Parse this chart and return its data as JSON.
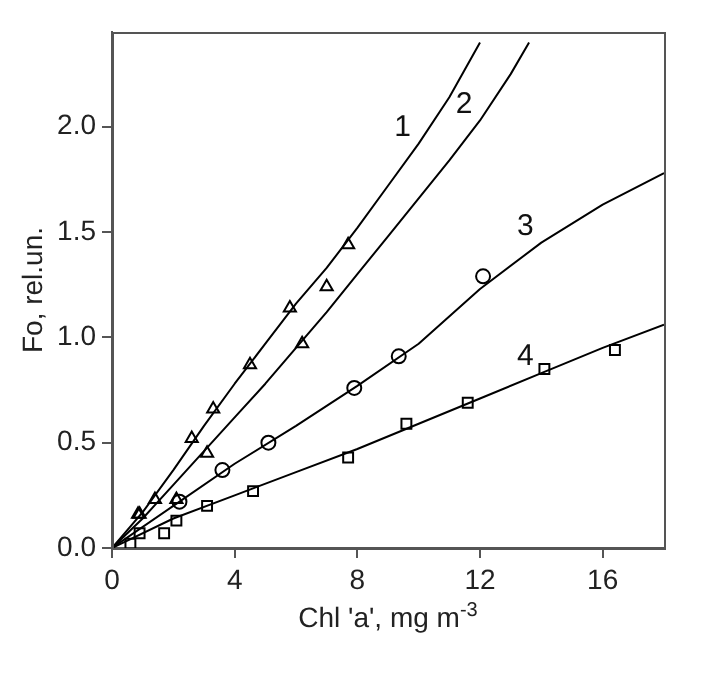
{
  "chart_data": {
    "type": "line",
    "xlabel": "Chl 'a', mg m$^{-3}$",
    "ylabel": "Fo, rel.un.",
    "xlim": [
      0,
      18
    ],
    "ylim": [
      0,
      2.45
    ],
    "xticks": [
      0,
      4,
      8,
      12,
      16
    ],
    "yticks": [
      {
        "value": 0,
        "label": "0.0"
      },
      {
        "value": 0.5,
        "label": "0.5"
      },
      {
        "value": 1,
        "label": "1.0"
      },
      {
        "value": 1.5,
        "label": "1.5"
      },
      {
        "value": 2,
        "label": "2.0"
      }
    ],
    "grid": false,
    "legend": false,
    "line_style": "solid",
    "series": [
      {
        "name": "1",
        "marker": "none",
        "color": "#000000",
        "x": [
          0,
          1,
          2,
          3,
          4,
          5,
          6,
          7,
          8,
          9,
          10,
          11,
          12
        ],
        "values": [
          0,
          0.17,
          0.37,
          0.58,
          0.78,
          0.97,
          1.16,
          1.33,
          1.52,
          1.72,
          1.92,
          2.14,
          2.4
        ]
      },
      {
        "name": "2",
        "marker": "none",
        "color": "#000000",
        "x": [
          0,
          1,
          2,
          3,
          4,
          5,
          6,
          7,
          8,
          9,
          10,
          11,
          12,
          13,
          13.6
        ],
        "values": [
          0,
          0.14,
          0.3,
          0.46,
          0.62,
          0.78,
          0.95,
          1.12,
          1.3,
          1.48,
          1.66,
          1.84,
          2.03,
          2.25,
          2.4
        ]
      },
      {
        "name": "3",
        "marker": "none",
        "color": "#000000",
        "x": [
          0,
          2,
          4,
          6,
          8,
          10,
          12,
          14,
          16,
          18
        ],
        "values": [
          0,
          0.2,
          0.4,
          0.58,
          0.77,
          0.97,
          1.23,
          1.45,
          1.63,
          1.78
        ]
      },
      {
        "name": "4",
        "marker": "none",
        "color": "#000000",
        "x": [
          0,
          2,
          4,
          6,
          8,
          10,
          12,
          14,
          16,
          18
        ],
        "values": [
          0,
          0.14,
          0.25,
          0.36,
          0.47,
          0.59,
          0.71,
          0.83,
          0.95,
          1.06
        ]
      },
      {
        "type": "scatter",
        "marker": "triangle",
        "color": "#000000",
        "x": [
          0.9,
          1.4,
          2.6,
          3.3,
          4.5,
          5.8,
          7.7
        ],
        "values": [
          0.16,
          0.23,
          0.52,
          0.66,
          0.87,
          1.14,
          1.44
        ]
      },
      {
        "type": "scatter",
        "marker": "triangle",
        "color": "#000000",
        "x": [
          0.85,
          2.1,
          3.1,
          6.2,
          7
        ],
        "values": [
          0.16,
          0.23,
          0.45,
          0.97,
          1.24
        ]
      },
      {
        "type": "scatter",
        "marker": "circle",
        "color": "#000000",
        "x": [
          2.2,
          3.6,
          5.1,
          7.9,
          9.35,
          12.1
        ],
        "values": [
          0.22,
          0.37,
          0.5,
          0.76,
          0.91,
          1.29
        ]
      },
      {
        "type": "scatter",
        "marker": "square",
        "color": "#000000",
        "x": [
          0.6,
          0.9,
          1.7,
          2.1,
          3.1,
          4.6,
          7.7,
          9.6,
          11.6,
          14.1,
          16.4
        ],
        "values": [
          0.02,
          0.07,
          0.07,
          0.13,
          0.2,
          0.27,
          0.43,
          0.59,
          0.69,
          0.85,
          0.94
        ]
      }
    ]
  }
}
